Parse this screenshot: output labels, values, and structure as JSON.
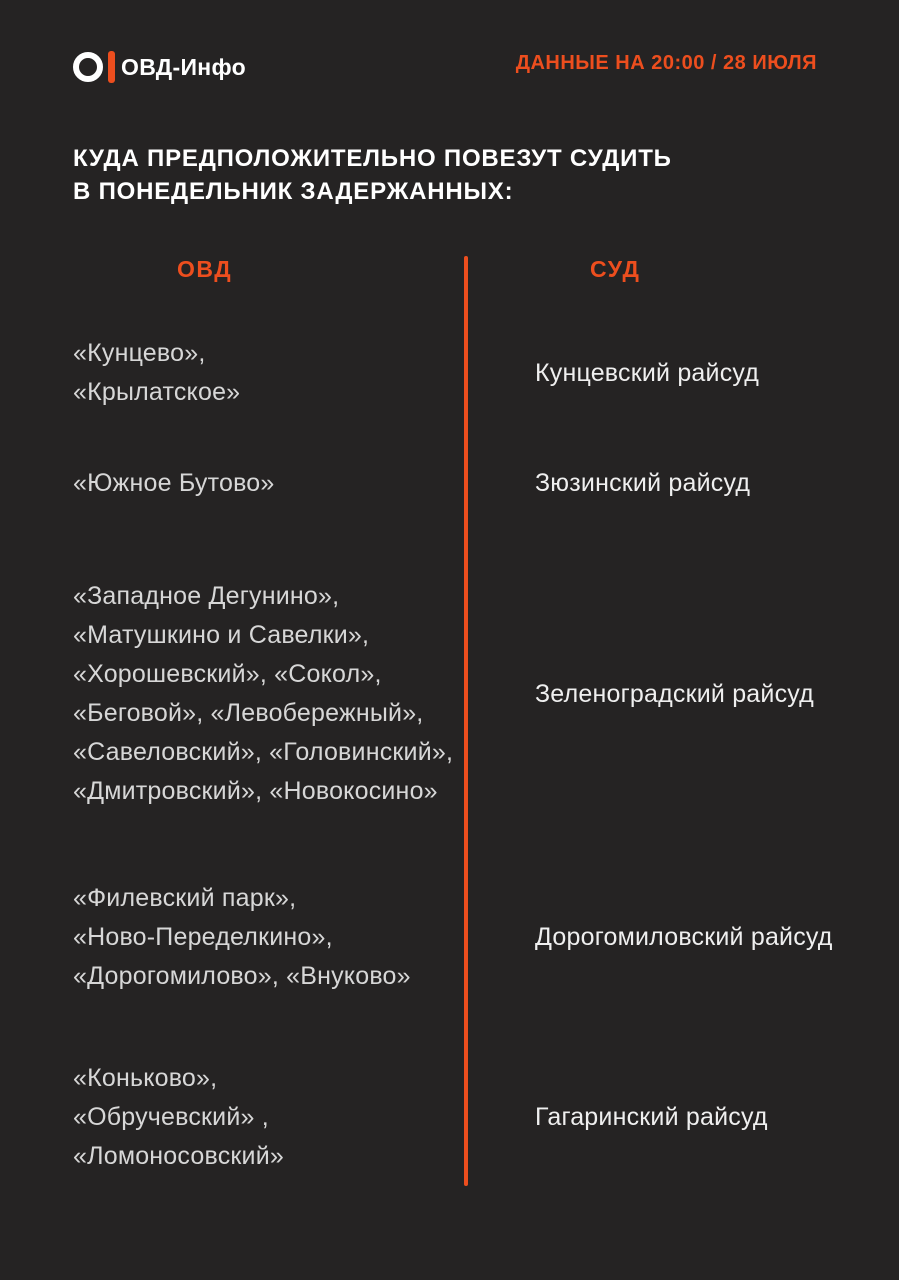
{
  "colors": {
    "background": "#252323",
    "accent": "#ED4E1E",
    "left_text": "#D7D7D7",
    "right_text": "#EFEFEF",
    "title_text": "#FFFFFF"
  },
  "header": {
    "logo_text": "ОВД-Инфо",
    "date_label": "ДАННЫЕ НА 20:00 / 28 ИЮЛЯ"
  },
  "title": "КУДА ПРЕДПОЛОЖИТЕЛЬНО ПОВЕЗУТ СУДИТЬ\nВ ПОНЕДЕЛЬНИК ЗАДЕРЖАННЫХ:",
  "table": {
    "columns": {
      "left": "ОВД",
      "right": "СУД"
    },
    "rows": [
      {
        "ovd": [
          "«Кунцево»,",
          "«Крылатское»"
        ],
        "court": "Кунцевский райсуд"
      },
      {
        "ovd": [
          "«Южное Бутово»"
        ],
        "court": "Зюзинский райсуд"
      },
      {
        "ovd": [
          "«Западное Дегунино»,",
          "«Матушкино и Савелки»,",
          "«Хорошевский», «Сокол»,",
          "«Беговой», «Левобережный»,",
          "«Савеловский», «Головинский»,",
          "«Дмитровский», «Новокосино»"
        ],
        "court": "Зеленоградский райсуд"
      },
      {
        "ovd": [
          "«Филевский парк»,",
          "«Ново-Переделкино»,",
          "«Дорогомилово», «Внуково»"
        ],
        "court": "Дорогомиловский райсуд"
      },
      {
        "ovd": [
          "«Коньково»,",
          "«Обручевский» ,",
          "«Ломоносовский»"
        ],
        "court": "Гагаринский райсуд"
      }
    ]
  }
}
